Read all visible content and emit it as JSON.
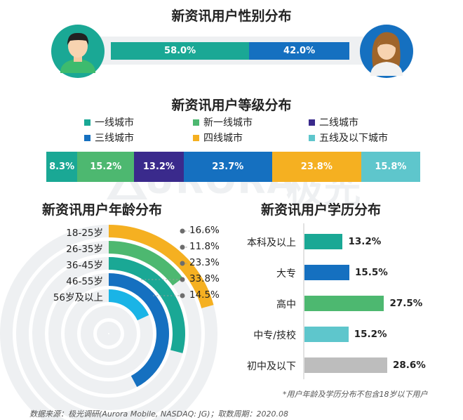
{
  "watermark": {
    "brand": "URORA",
    "cn": "极光"
  },
  "gender": {
    "title": "新资讯用户性别分布",
    "segments": [
      {
        "label": "58.0%",
        "value": 58.0,
        "color": "#1aa895"
      },
      {
        "label": "42.0%",
        "value": 42.0,
        "color": "#1570c0"
      }
    ],
    "icons": {
      "male": "male-avatar-icon",
      "female": "female-avatar-icon"
    }
  },
  "tier": {
    "title": "新资讯用户等级分布",
    "legend": [
      {
        "label": "一线城市",
        "color": "#1aa895"
      },
      {
        "label": "新一线城市",
        "color": "#4db870"
      },
      {
        "label": "二线城市",
        "color": "#3a2a8c"
      },
      {
        "label": "三线城市",
        "color": "#1570c0"
      },
      {
        "label": "四线城市",
        "color": "#f5b021"
      },
      {
        "label": "五线及以下城市",
        "color": "#5ec6cc"
      }
    ]
  },
  "age": {
    "title": "新资讯用户年龄分布",
    "colors": [
      "#f5b021",
      "#4db870",
      "#1aa895",
      "#1570c0",
      "#1ab4e6"
    ]
  },
  "edu": {
    "title": "新资讯用户学历分布",
    "colors": [
      "#1aa895",
      "#1570c0",
      "#4db870",
      "#5ec6cc",
      "#bdbdbd"
    ]
  },
  "note": "*用户年龄及学历分布不包含18岁以下用户",
  "source": "数据来源：极光调研(Aurora Mobile, NASDAQ: JG)；取数周期：2020.08",
  "chart_data": [
    {
      "type": "bar",
      "title": "新资讯用户性别分布",
      "categories": [
        "男",
        "女"
      ],
      "values": [
        58.0,
        42.0
      ]
    },
    {
      "type": "bar",
      "title": "新资讯用户等级分布",
      "categories": [
        "一线城市",
        "新一线城市",
        "二线城市",
        "三线城市",
        "四线城市",
        "五线及以下城市"
      ],
      "values": [
        8.3,
        15.2,
        13.2,
        23.7,
        23.8,
        15.8
      ],
      "labels": [
        "8.3%",
        "15.2%",
        "13.2%",
        "23.7%",
        "23.8%",
        "15.8%"
      ]
    },
    {
      "type": "bar",
      "title": "新资讯用户年龄分布",
      "categories": [
        "18-25岁",
        "26-35岁",
        "36-45岁",
        "46-55岁",
        "56岁及以上"
      ],
      "values": [
        16.6,
        11.8,
        23.3,
        33.8,
        14.5
      ],
      "labels": [
        "16.6%",
        "11.8%",
        "23.3%",
        "33.8%",
        "14.5%"
      ]
    },
    {
      "type": "bar",
      "title": "新资讯用户学历分布",
      "categories": [
        "本科及以上",
        "大专",
        "高中",
        "中专/技校",
        "初中及以下"
      ],
      "values": [
        13.2,
        15.5,
        27.5,
        15.2,
        28.6
      ],
      "labels": [
        "13.2%",
        "15.5%",
        "27.5%",
        "15.2%",
        "28.6%"
      ]
    }
  ]
}
